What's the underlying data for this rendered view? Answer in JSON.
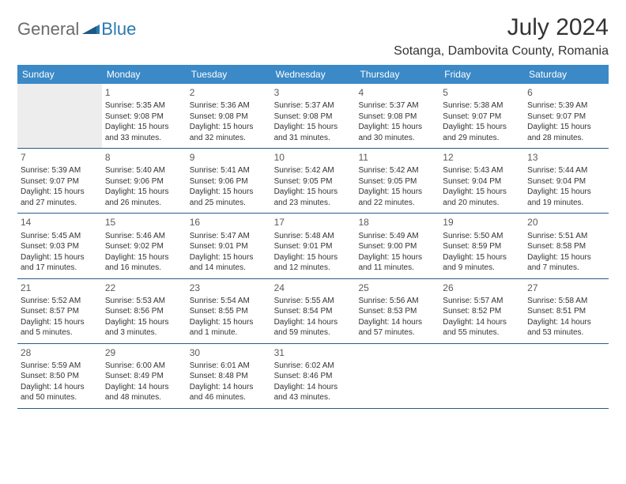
{
  "logo": {
    "general": "General",
    "blue": "Blue"
  },
  "title": "July 2024",
  "subtitle": "Sotanga, Dambovita County, Romania",
  "headers": [
    "Sunday",
    "Monday",
    "Tuesday",
    "Wednesday",
    "Thursday",
    "Friday",
    "Saturday"
  ],
  "colors": {
    "header_bg": "#3b89c7",
    "header_text": "#ffffff",
    "border": "#2b5b88",
    "shade": "#ededed",
    "text": "#333333",
    "logo_gray": "#6b6b6b",
    "logo_blue": "#2a7ab0"
  },
  "weeks": [
    [
      {
        "day": "",
        "sunrise": "",
        "sunset": "",
        "daylight1": "",
        "daylight2": "",
        "shade": true
      },
      {
        "day": "1",
        "sunrise": "Sunrise: 5:35 AM",
        "sunset": "Sunset: 9:08 PM",
        "daylight1": "Daylight: 15 hours",
        "daylight2": "and 33 minutes."
      },
      {
        "day": "2",
        "sunrise": "Sunrise: 5:36 AM",
        "sunset": "Sunset: 9:08 PM",
        "daylight1": "Daylight: 15 hours",
        "daylight2": "and 32 minutes."
      },
      {
        "day": "3",
        "sunrise": "Sunrise: 5:37 AM",
        "sunset": "Sunset: 9:08 PM",
        "daylight1": "Daylight: 15 hours",
        "daylight2": "and 31 minutes."
      },
      {
        "day": "4",
        "sunrise": "Sunrise: 5:37 AM",
        "sunset": "Sunset: 9:08 PM",
        "daylight1": "Daylight: 15 hours",
        "daylight2": "and 30 minutes."
      },
      {
        "day": "5",
        "sunrise": "Sunrise: 5:38 AM",
        "sunset": "Sunset: 9:07 PM",
        "daylight1": "Daylight: 15 hours",
        "daylight2": "and 29 minutes."
      },
      {
        "day": "6",
        "sunrise": "Sunrise: 5:39 AM",
        "sunset": "Sunset: 9:07 PM",
        "daylight1": "Daylight: 15 hours",
        "daylight2": "and 28 minutes."
      }
    ],
    [
      {
        "day": "7",
        "sunrise": "Sunrise: 5:39 AM",
        "sunset": "Sunset: 9:07 PM",
        "daylight1": "Daylight: 15 hours",
        "daylight2": "and 27 minutes."
      },
      {
        "day": "8",
        "sunrise": "Sunrise: 5:40 AM",
        "sunset": "Sunset: 9:06 PM",
        "daylight1": "Daylight: 15 hours",
        "daylight2": "and 26 minutes."
      },
      {
        "day": "9",
        "sunrise": "Sunrise: 5:41 AM",
        "sunset": "Sunset: 9:06 PM",
        "daylight1": "Daylight: 15 hours",
        "daylight2": "and 25 minutes."
      },
      {
        "day": "10",
        "sunrise": "Sunrise: 5:42 AM",
        "sunset": "Sunset: 9:05 PM",
        "daylight1": "Daylight: 15 hours",
        "daylight2": "and 23 minutes."
      },
      {
        "day": "11",
        "sunrise": "Sunrise: 5:42 AM",
        "sunset": "Sunset: 9:05 PM",
        "daylight1": "Daylight: 15 hours",
        "daylight2": "and 22 minutes."
      },
      {
        "day": "12",
        "sunrise": "Sunrise: 5:43 AM",
        "sunset": "Sunset: 9:04 PM",
        "daylight1": "Daylight: 15 hours",
        "daylight2": "and 20 minutes."
      },
      {
        "day": "13",
        "sunrise": "Sunrise: 5:44 AM",
        "sunset": "Sunset: 9:04 PM",
        "daylight1": "Daylight: 15 hours",
        "daylight2": "and 19 minutes."
      }
    ],
    [
      {
        "day": "14",
        "sunrise": "Sunrise: 5:45 AM",
        "sunset": "Sunset: 9:03 PM",
        "daylight1": "Daylight: 15 hours",
        "daylight2": "and 17 minutes."
      },
      {
        "day": "15",
        "sunrise": "Sunrise: 5:46 AM",
        "sunset": "Sunset: 9:02 PM",
        "daylight1": "Daylight: 15 hours",
        "daylight2": "and 16 minutes."
      },
      {
        "day": "16",
        "sunrise": "Sunrise: 5:47 AM",
        "sunset": "Sunset: 9:01 PM",
        "daylight1": "Daylight: 15 hours",
        "daylight2": "and 14 minutes."
      },
      {
        "day": "17",
        "sunrise": "Sunrise: 5:48 AM",
        "sunset": "Sunset: 9:01 PM",
        "daylight1": "Daylight: 15 hours",
        "daylight2": "and 12 minutes."
      },
      {
        "day": "18",
        "sunrise": "Sunrise: 5:49 AM",
        "sunset": "Sunset: 9:00 PM",
        "daylight1": "Daylight: 15 hours",
        "daylight2": "and 11 minutes."
      },
      {
        "day": "19",
        "sunrise": "Sunrise: 5:50 AM",
        "sunset": "Sunset: 8:59 PM",
        "daylight1": "Daylight: 15 hours",
        "daylight2": "and 9 minutes."
      },
      {
        "day": "20",
        "sunrise": "Sunrise: 5:51 AM",
        "sunset": "Sunset: 8:58 PM",
        "daylight1": "Daylight: 15 hours",
        "daylight2": "and 7 minutes."
      }
    ],
    [
      {
        "day": "21",
        "sunrise": "Sunrise: 5:52 AM",
        "sunset": "Sunset: 8:57 PM",
        "daylight1": "Daylight: 15 hours",
        "daylight2": "and 5 minutes."
      },
      {
        "day": "22",
        "sunrise": "Sunrise: 5:53 AM",
        "sunset": "Sunset: 8:56 PM",
        "daylight1": "Daylight: 15 hours",
        "daylight2": "and 3 minutes."
      },
      {
        "day": "23",
        "sunrise": "Sunrise: 5:54 AM",
        "sunset": "Sunset: 8:55 PM",
        "daylight1": "Daylight: 15 hours",
        "daylight2": "and 1 minute."
      },
      {
        "day": "24",
        "sunrise": "Sunrise: 5:55 AM",
        "sunset": "Sunset: 8:54 PM",
        "daylight1": "Daylight: 14 hours",
        "daylight2": "and 59 minutes."
      },
      {
        "day": "25",
        "sunrise": "Sunrise: 5:56 AM",
        "sunset": "Sunset: 8:53 PM",
        "daylight1": "Daylight: 14 hours",
        "daylight2": "and 57 minutes."
      },
      {
        "day": "26",
        "sunrise": "Sunrise: 5:57 AM",
        "sunset": "Sunset: 8:52 PM",
        "daylight1": "Daylight: 14 hours",
        "daylight2": "and 55 minutes."
      },
      {
        "day": "27",
        "sunrise": "Sunrise: 5:58 AM",
        "sunset": "Sunset: 8:51 PM",
        "daylight1": "Daylight: 14 hours",
        "daylight2": "and 53 minutes."
      }
    ],
    [
      {
        "day": "28",
        "sunrise": "Sunrise: 5:59 AM",
        "sunset": "Sunset: 8:50 PM",
        "daylight1": "Daylight: 14 hours",
        "daylight2": "and 50 minutes."
      },
      {
        "day": "29",
        "sunrise": "Sunrise: 6:00 AM",
        "sunset": "Sunset: 8:49 PM",
        "daylight1": "Daylight: 14 hours",
        "daylight2": "and 48 minutes."
      },
      {
        "day": "30",
        "sunrise": "Sunrise: 6:01 AM",
        "sunset": "Sunset: 8:48 PM",
        "daylight1": "Daylight: 14 hours",
        "daylight2": "and 46 minutes."
      },
      {
        "day": "31",
        "sunrise": "Sunrise: 6:02 AM",
        "sunset": "Sunset: 8:46 PM",
        "daylight1": "Daylight: 14 hours",
        "daylight2": "and 43 minutes."
      },
      {
        "day": "",
        "sunrise": "",
        "sunset": "",
        "daylight1": "",
        "daylight2": ""
      },
      {
        "day": "",
        "sunrise": "",
        "sunset": "",
        "daylight1": "",
        "daylight2": ""
      },
      {
        "day": "",
        "sunrise": "",
        "sunset": "",
        "daylight1": "",
        "daylight2": ""
      }
    ]
  ]
}
